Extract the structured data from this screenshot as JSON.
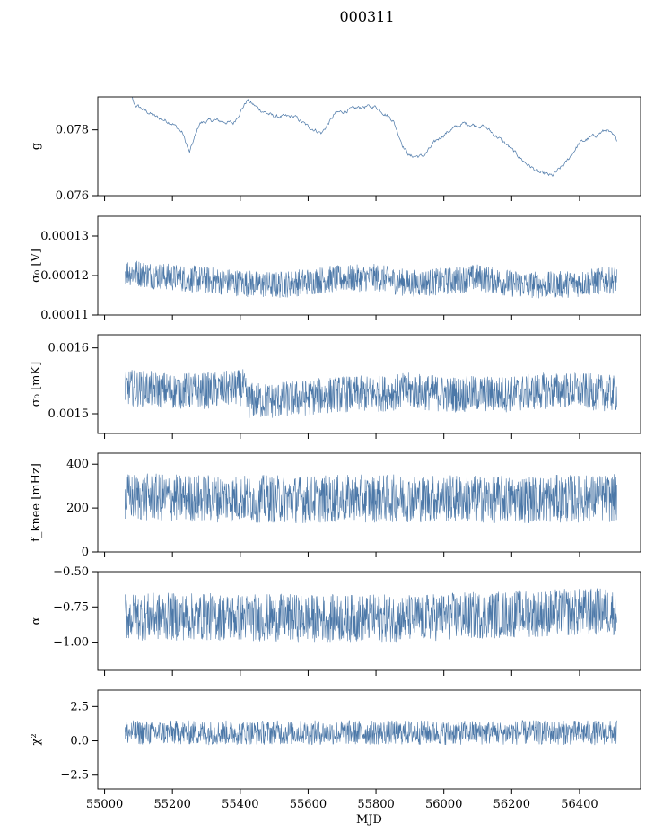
{
  "figure_title": "000311",
  "series_color": "#4c78a8",
  "chart_data": [
    {
      "type": "line",
      "ylabel": "g",
      "xlim": [
        54980,
        56580
      ],
      "ylim": [
        0.076,
        0.079
      ],
      "yticks": [
        0.076,
        0.078
      ],
      "ytick_labels": [
        "0.076",
        "0.078"
      ],
      "series": [
        {
          "x": [
            55060,
            55100,
            55150,
            55200,
            55230,
            55250,
            55280,
            55320,
            55380,
            55420,
            55460,
            55500,
            55560,
            55600,
            55640,
            55680,
            55720,
            55760,
            55800,
            55850,
            55880,
            55900,
            55940,
            55980,
            56020,
            56060,
            56120,
            56180,
            56240,
            56280,
            56320,
            56360,
            56400,
            56440,
            56480,
            56510
          ],
          "y": [
            0.0788,
            0.0787,
            0.0784,
            0.0782,
            0.0779,
            0.0773,
            0.0782,
            0.0783,
            0.0782,
            0.0789,
            0.0786,
            0.0784,
            0.0784,
            0.0781,
            0.0779,
            0.0785,
            0.0786,
            0.0787,
            0.0787,
            0.0783,
            0.0775,
            0.0772,
            0.0772,
            0.0777,
            0.078,
            0.0782,
            0.0781,
            0.0776,
            0.077,
            0.0767,
            0.0766,
            0.077,
            0.0776,
            0.0778,
            0.078,
            0.0777
          ],
          "noise": 0.00012
        }
      ]
    },
    {
      "type": "line",
      "ylabel": "σ₀ [V]",
      "xlim": [
        54980,
        56580
      ],
      "ylim": [
        0.00011,
        0.000135
      ],
      "yticks": [
        0.00011,
        0.00012,
        0.00013
      ],
      "ytick_labels": [
        "0.00011",
        "0.00012",
        "0.00013"
      ],
      "series": [
        {
          "x": [
            55060,
            55200,
            55350,
            55500,
            55650,
            55800,
            55900,
            56000,
            56100,
            56200,
            56300,
            56400,
            56510
          ],
          "y": [
            0.000121,
            0.0001195,
            0.0001185,
            0.0001175,
            0.000119,
            0.0001195,
            0.000118,
            0.0001185,
            0.0001195,
            0.000118,
            0.0001175,
            0.000118,
            0.000119
          ],
          "noise": 3.5e-06
        }
      ]
    },
    {
      "type": "line",
      "ylabel": "σ₀ [mK]",
      "xlim": [
        54980,
        56580
      ],
      "ylim": [
        0.00147,
        0.00162
      ],
      "yticks": [
        0.0015,
        0.0016
      ],
      "ytick_labels": [
        "0.0015",
        "0.0016"
      ],
      "series": [
        {
          "x": [
            55060,
            55200,
            55300,
            55410,
            55420,
            55500,
            55600,
            55700,
            55800,
            55900,
            56000,
            56100,
            56200,
            56300,
            56400,
            56510
          ],
          "y": [
            0.00154,
            0.001535,
            0.001535,
            0.00154,
            0.00152,
            0.00152,
            0.001525,
            0.00153,
            0.00153,
            0.001535,
            0.00153,
            0.00153,
            0.00153,
            0.001535,
            0.001535,
            0.00153
          ],
          "noise": 2.8e-05
        }
      ]
    },
    {
      "type": "line",
      "ylabel": "f_knee [mHz]",
      "xlim": [
        54980,
        56580
      ],
      "ylim": [
        0,
        450
      ],
      "yticks": [
        0,
        200,
        400
      ],
      "ytick_labels": [
        "0",
        "200",
        "400"
      ],
      "series": [
        {
          "x": [
            55060,
            55300,
            55600,
            55900,
            56200,
            56510
          ],
          "y": [
            250,
            245,
            240,
            245,
            240,
            245
          ],
          "noise": 110
        }
      ]
    },
    {
      "type": "line",
      "ylabel": "α",
      "xlim": [
        54980,
        56580
      ],
      "ylim": [
        -1.2,
        -0.5
      ],
      "yticks": [
        -1.0,
        -0.75,
        -0.5
      ],
      "ytick_labels": [
        "−1.00",
        "−0.75",
        "−0.50"
      ],
      "series": [
        {
          "x": [
            55060,
            55300,
            55600,
            55900,
            56200,
            56510
          ],
          "y": [
            -0.82,
            -0.82,
            -0.83,
            -0.83,
            -0.8,
            -0.78
          ],
          "noise": 0.17
        }
      ]
    },
    {
      "type": "line",
      "ylabel": "χ²",
      "xlabel": "MJD",
      "xlim": [
        54980,
        56580
      ],
      "ylim": [
        -3.5,
        3.7
      ],
      "yticks": [
        -2.5,
        0.0,
        2.5
      ],
      "ytick_labels": [
        "−2.5",
        "0.0",
        "2.5"
      ],
      "xticks": [
        55000,
        55200,
        55400,
        55600,
        55800,
        56000,
        56200,
        56400
      ],
      "xtick_labels": [
        "55000",
        "55200",
        "55400",
        "55600",
        "55800",
        "56000",
        "56200",
        "56400"
      ],
      "series": [
        {
          "x": [
            55060,
            55300,
            55600,
            55900,
            56200,
            56510
          ],
          "y": [
            0.6,
            0.6,
            0.6,
            0.6,
            0.6,
            0.6
          ],
          "noise": 0.9
        }
      ]
    }
  ]
}
